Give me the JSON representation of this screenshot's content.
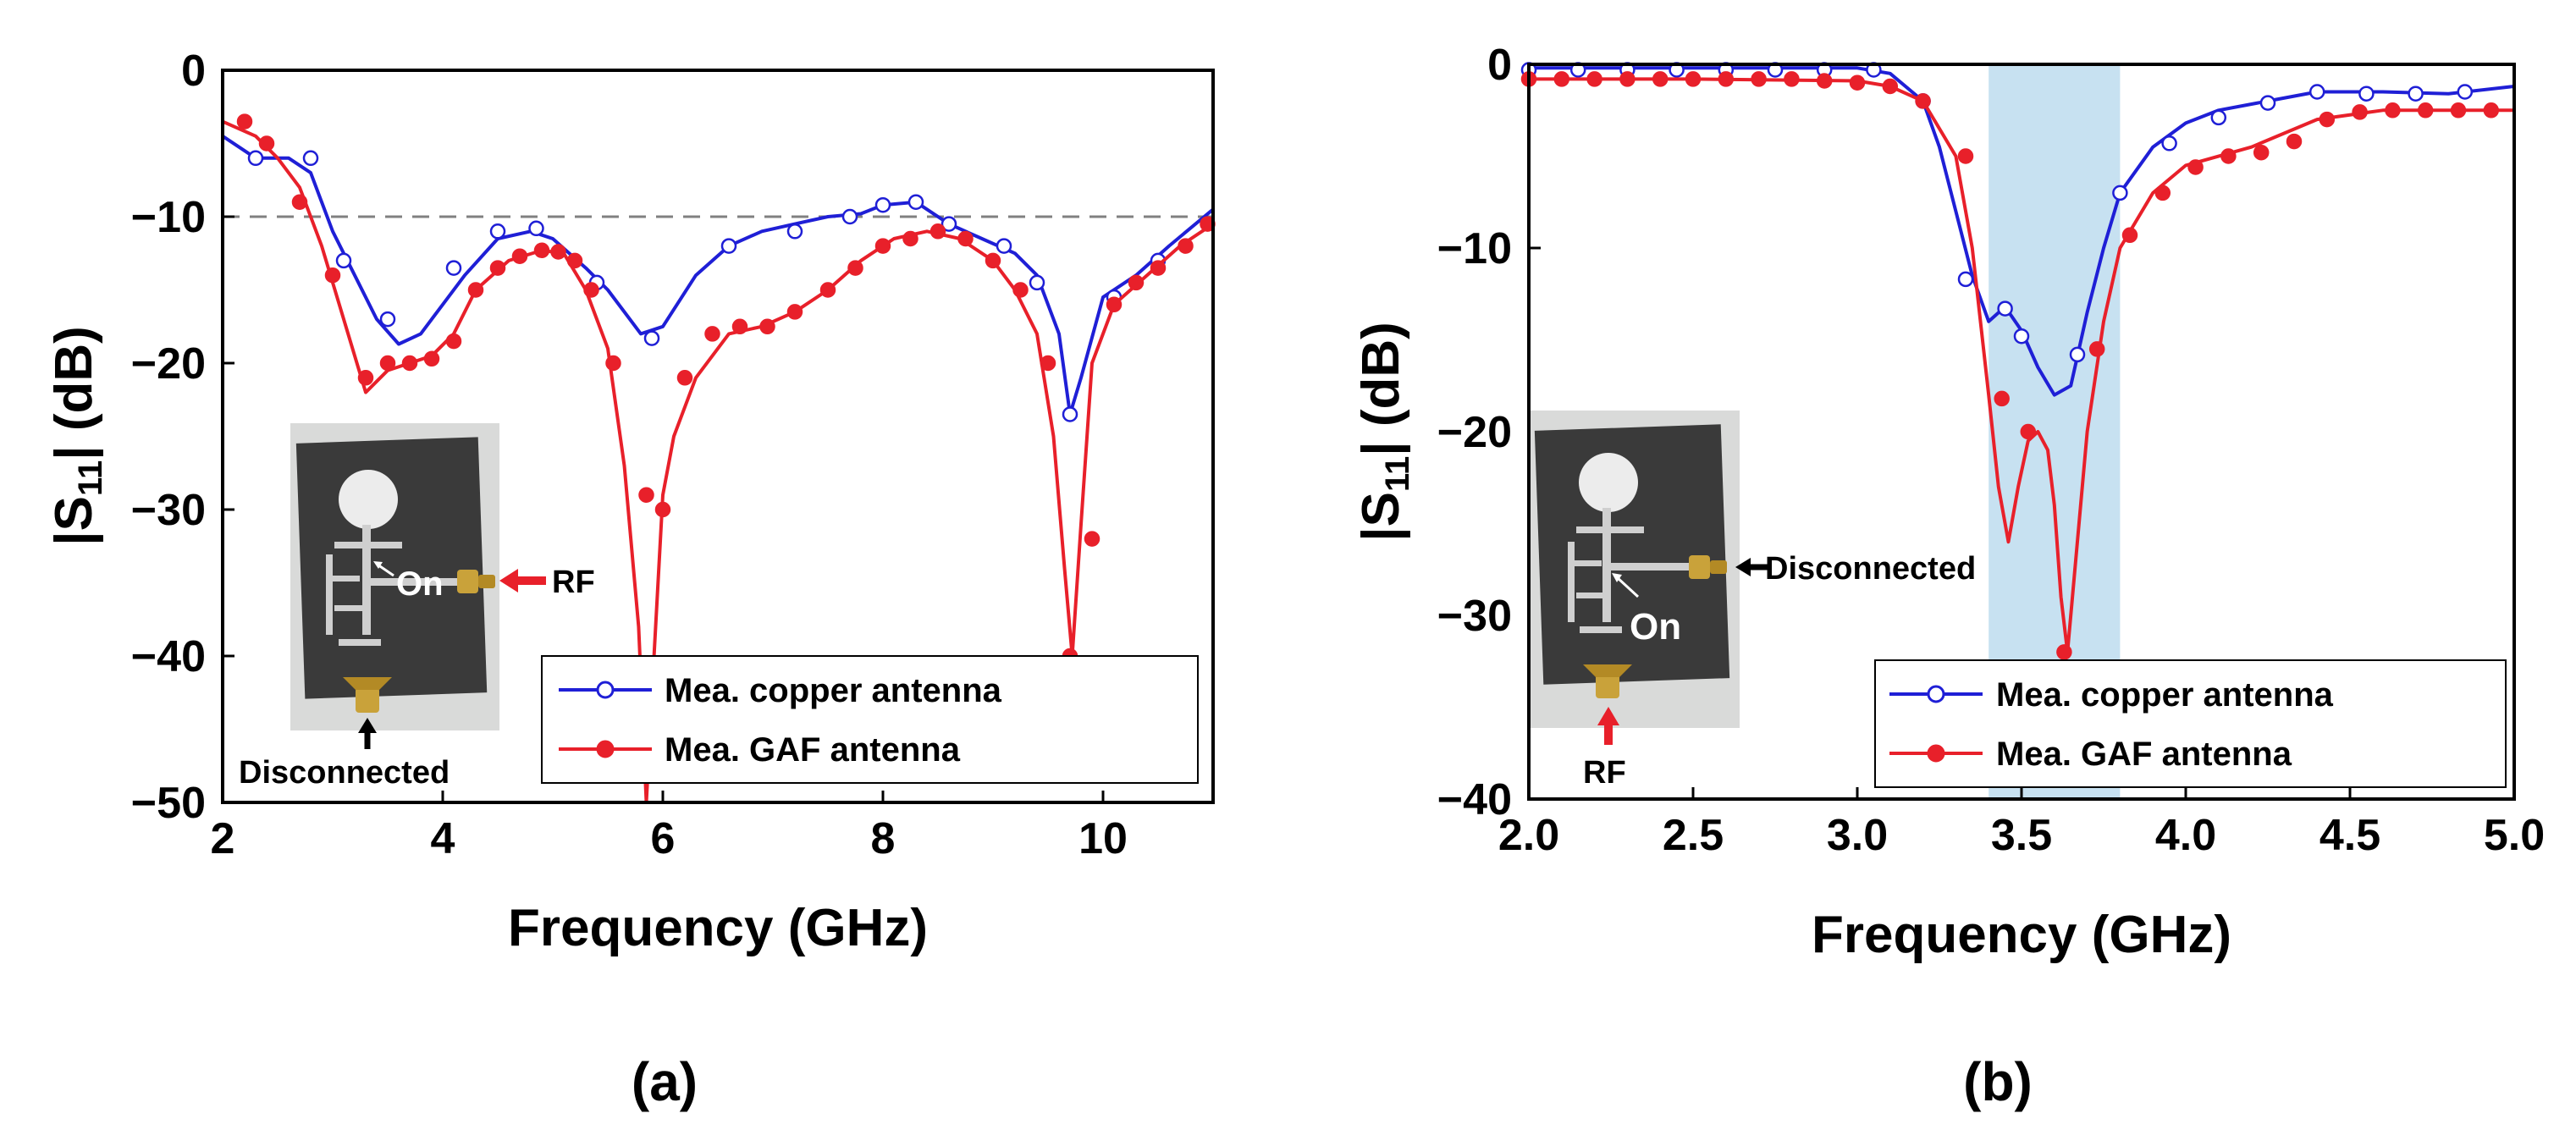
{
  "colors": {
    "copper": "#1f1fd6",
    "gaf": "#e8202a",
    "band": "#c7e1f1",
    "reference": "#808080"
  },
  "chart_data": [
    {
      "type": "line",
      "panel_label": "(a)",
      "xlabel": "Frequency (GHz)",
      "ylabel_main": "|S",
      "ylabel_sub": "11",
      "ylabel_tail": "| (dB)",
      "xlim": [
        2,
        11
      ],
      "ylim": [
        -50,
        0
      ],
      "xticks": [
        2,
        4,
        6,
        8,
        10
      ],
      "xtick_labels": [
        "2",
        "4",
        "6",
        "8",
        "10"
      ],
      "yticks": [
        0,
        -10,
        -20,
        -30,
        -40,
        -50
      ],
      "ytick_labels": [
        "0",
        "−10",
        "−20",
        "−30",
        "−40",
        "−50"
      ],
      "reference_line_db": -10,
      "series": [
        {
          "name": "Mea. copper antenna",
          "marker": "open-circle",
          "x": [
            2.0,
            2.3,
            2.6,
            2.8,
            3.0,
            3.2,
            3.4,
            3.6,
            3.8,
            4.0,
            4.2,
            4.5,
            4.8,
            5.0,
            5.3,
            5.5,
            5.8,
            6.0,
            6.3,
            6.6,
            6.9,
            7.2,
            7.5,
            7.8,
            8.0,
            8.3,
            8.6,
            8.9,
            9.2,
            9.4,
            9.6,
            9.7,
            9.8,
            10.0,
            10.3,
            10.6,
            11.0
          ],
          "y": [
            -4.5,
            -6,
            -6,
            -7,
            -11,
            -14,
            -17,
            -18.7,
            -18,
            -16,
            -14,
            -11.5,
            -11,
            -11.5,
            -13.5,
            -15,
            -18,
            -17.5,
            -14,
            -12,
            -11,
            -10.5,
            -10,
            -9.8,
            -9.2,
            -9,
            -10.5,
            -11.5,
            -12.5,
            -14,
            -18,
            -23.5,
            -21,
            -15.5,
            -14,
            -12,
            -9.5
          ],
          "marker_x": [
            2.3,
            2.8,
            3.1,
            3.5,
            4.1,
            4.5,
            4.85,
            5.4,
            5.9,
            6.6,
            7.2,
            7.7,
            8.0,
            8.3,
            8.6,
            9.1,
            9.4,
            9.7,
            10.1,
            10.5
          ],
          "marker_y": [
            -6,
            -6,
            -13,
            -17,
            -13.5,
            -11,
            -10.8,
            -14.5,
            -18.3,
            -12,
            -11,
            -10,
            -9.2,
            -9,
            -10.5,
            -12,
            -14.5,
            -23.5,
            -15.5,
            -13
          ]
        },
        {
          "name": "Mea. GAF antenna",
          "marker": "filled-circle",
          "x": [
            2.0,
            2.3,
            2.5,
            2.7,
            2.9,
            3.1,
            3.3,
            3.5,
            3.7,
            3.9,
            4.1,
            4.3,
            4.6,
            4.9,
            5.1,
            5.3,
            5.5,
            5.65,
            5.78,
            5.85,
            5.92,
            6.0,
            6.1,
            6.3,
            6.6,
            6.9,
            7.2,
            7.5,
            7.8,
            8.1,
            8.4,
            8.7,
            9.0,
            9.2,
            9.4,
            9.55,
            9.65,
            9.72,
            9.8,
            9.9,
            10.1,
            10.4,
            10.7,
            11.0
          ],
          "y": [
            -3.5,
            -4.5,
            -6,
            -8,
            -12,
            -17,
            -22,
            -20.5,
            -20,
            -19.5,
            -18,
            -15,
            -13,
            -12.3,
            -12.5,
            -15,
            -19,
            -27,
            -38,
            -50,
            -40,
            -29,
            -25,
            -21,
            -18,
            -17.5,
            -16.5,
            -15,
            -13,
            -11.5,
            -11,
            -11.5,
            -13,
            -15,
            -18,
            -25,
            -34,
            -40,
            -31,
            -20,
            -16,
            -14,
            -12,
            -10.5
          ],
          "marker_x": [
            2.2,
            2.4,
            2.7,
            3.0,
            3.3,
            3.5,
            3.7,
            3.9,
            4.1,
            4.3,
            4.5,
            4.7,
            4.9,
            5.05,
            5.2,
            5.35,
            5.55,
            5.85,
            6.0,
            6.2,
            6.45,
            6.7,
            6.95,
            7.2,
            7.5,
            7.75,
            8.0,
            8.25,
            8.5,
            8.75,
            9.0,
            9.25,
            9.5,
            9.7,
            9.9,
            10.1,
            10.3,
            10.5,
            10.75,
            10.95
          ],
          "marker_y": [
            -3.5,
            -5,
            -9,
            -14,
            -21,
            -20,
            -20,
            -19.7,
            -18.5,
            -15,
            -13.5,
            -12.7,
            -12.3,
            -12.4,
            -13,
            -15,
            -20,
            -29,
            -30,
            -21,
            -18,
            -17.5,
            -17.5,
            -16.5,
            -15,
            -13.5,
            -12,
            -11.5,
            -11,
            -11.5,
            -13,
            -15,
            -20,
            -40,
            -32,
            -16,
            -14.5,
            -13.5,
            -12,
            -10.5
          ]
        }
      ],
      "inset": {
        "on_label": "On",
        "right_port_label": "RF",
        "bottom_port_label": "Disconnected"
      }
    },
    {
      "type": "line",
      "panel_label": "(b)",
      "xlabel": "Frequency (GHz)",
      "ylabel_main": "|S",
      "ylabel_sub": "11",
      "ylabel_tail": "| (dB)",
      "xlim": [
        2.0,
        5.0
      ],
      "ylim": [
        -40,
        0
      ],
      "xticks": [
        2.0,
        2.5,
        3.0,
        3.5,
        4.0,
        4.5,
        5.0
      ],
      "xtick_labels": [
        "2.0",
        "2.5",
        "3.0",
        "3.5",
        "4.0",
        "4.5",
        "5.0"
      ],
      "yticks": [
        0,
        -10,
        -20,
        -30,
        -40
      ],
      "ytick_labels": [
        "0",
        "−10",
        "−20",
        "−30",
        "−40"
      ],
      "shaded_band_ghz": [
        3.4,
        3.8
      ],
      "series": [
        {
          "name": "Mea. copper antenna",
          "marker": "open-circle",
          "x": [
            2.0,
            2.5,
            3.0,
            3.1,
            3.2,
            3.25,
            3.3,
            3.35,
            3.4,
            3.45,
            3.5,
            3.55,
            3.6,
            3.65,
            3.7,
            3.75,
            3.8,
            3.9,
            4.0,
            4.1,
            4.25,
            4.4,
            4.6,
            4.8,
            5.0
          ],
          "y": [
            -0.2,
            -0.2,
            -0.2,
            -0.5,
            -2,
            -4.5,
            -8,
            -11.5,
            -14,
            -13.2,
            -14.5,
            -16.5,
            -18,
            -17.5,
            -13.5,
            -10,
            -7,
            -4.5,
            -3.2,
            -2.5,
            -2,
            -1.5,
            -1.5,
            -1.6,
            -1.2
          ],
          "marker_x": [
            2.0,
            2.15,
            2.3,
            2.45,
            2.6,
            2.75,
            2.9,
            3.05,
            3.2,
            3.33,
            3.45,
            3.5,
            3.67,
            3.8,
            3.95,
            4.1,
            4.25,
            4.4,
            4.55,
            4.7,
            4.85
          ],
          "marker_y": [
            -0.3,
            -0.3,
            -0.3,
            -0.3,
            -0.3,
            -0.3,
            -0.3,
            -0.3,
            -2,
            -11.7,
            -13.3,
            -14.8,
            -15.8,
            -7,
            -4.3,
            -2.9,
            -2.1,
            -1.5,
            -1.6,
            -1.6,
            -1.5
          ]
        },
        {
          "name": "Mea. GAF antenna",
          "marker": "filled-circle",
          "x": [
            2.0,
            2.5,
            3.0,
            3.1,
            3.2,
            3.3,
            3.35,
            3.4,
            3.43,
            3.46,
            3.49,
            3.52,
            3.55,
            3.58,
            3.6,
            3.62,
            3.64,
            3.66,
            3.7,
            3.75,
            3.8,
            3.9,
            4.0,
            4.2,
            4.4,
            4.6,
            4.8,
            5.0
          ],
          "y": [
            -0.8,
            -0.8,
            -0.9,
            -1.2,
            -2,
            -5,
            -10,
            -18,
            -23,
            -26,
            -23,
            -20.5,
            -20,
            -21,
            -24,
            -29,
            -32,
            -28,
            -20,
            -14,
            -10,
            -7,
            -5.5,
            -4.5,
            -3,
            -2.5,
            -2.5,
            -2.5
          ],
          "marker_x": [
            2.0,
            2.1,
            2.2,
            2.3,
            2.4,
            2.5,
            2.6,
            2.7,
            2.8,
            2.9,
            3.0,
            3.1,
            3.2,
            3.33,
            3.44,
            3.52,
            3.63,
            3.73,
            3.83,
            3.93,
            4.03,
            4.13,
            4.23,
            4.33,
            4.43,
            4.53,
            4.63,
            4.73,
            4.83,
            4.93
          ],
          "marker_y": [
            -0.8,
            -0.8,
            -0.8,
            -0.8,
            -0.8,
            -0.8,
            -0.8,
            -0.8,
            -0.8,
            -0.9,
            -1,
            -1.2,
            -2,
            -5,
            -18.2,
            -20,
            -32,
            -15.5,
            -9.3,
            -7,
            -5.6,
            -5,
            -4.8,
            -4.2,
            -3,
            -2.6,
            -2.5,
            -2.5,
            -2.5,
            -2.5
          ]
        }
      ],
      "inset": {
        "on_label": "On",
        "right_port_label": "Disconnected",
        "bottom_port_label": "RF"
      }
    }
  ]
}
